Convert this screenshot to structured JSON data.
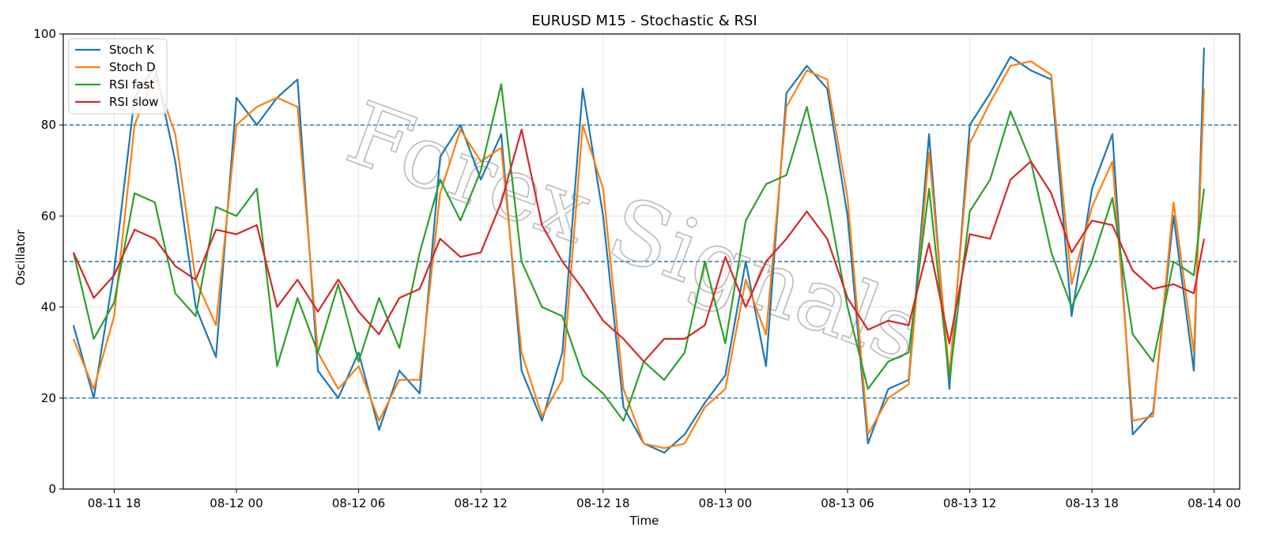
{
  "chart_data": {
    "type": "line",
    "title": "EURUSD M15 - Stochastic & RSI",
    "xlabel": "Time",
    "ylabel": "Oscillator",
    "ylim": [
      0,
      100
    ],
    "yticks": [
      0,
      20,
      40,
      60,
      80,
      100
    ],
    "xlim": [
      "2025-08-11 15:30",
      "2025-08-14 01:15"
    ],
    "xticks": [
      "2025-08-11 18:00",
      "2025-08-12 00:00",
      "2025-08-12 06:00",
      "2025-08-12 12:00",
      "2025-08-12 18:00",
      "2025-08-13 00:00",
      "2025-08-13 06:00",
      "2025-08-13 12:00",
      "2025-08-13 18:00",
      "2025-08-14 00:00"
    ],
    "xtick_labels": [
      "08-11 18",
      "08-12 00",
      "08-12 06",
      "08-12 12",
      "08-12 18",
      "08-13 00",
      "08-13 06",
      "08-13 12",
      "08-13 18",
      "08-14 00"
    ],
    "grid": true,
    "legend_position": "upper-left",
    "hlines": [
      {
        "y": 80,
        "style": "dashed",
        "color": "#1f77b4"
      },
      {
        "y": 50,
        "style": "dashed",
        "color": "#1f77b4"
      },
      {
        "y": 20,
        "style": "dashed",
        "color": "#1f77b4"
      }
    ],
    "watermark": "Forex Signals",
    "series": [
      {
        "name": "Stoch K",
        "color": "#1f77b4",
        "x": [
          "2025-08-11 16:00",
          "2025-08-11 17:00",
          "2025-08-11 18:00",
          "2025-08-11 19:00",
          "2025-08-11 20:00",
          "2025-08-11 21:00",
          "2025-08-11 22:00",
          "2025-08-11 23:00",
          "2025-08-12 00:00",
          "2025-08-12 01:00",
          "2025-08-12 02:00",
          "2025-08-12 03:00",
          "2025-08-12 04:00",
          "2025-08-12 05:00",
          "2025-08-12 06:00",
          "2025-08-12 07:00",
          "2025-08-12 08:00",
          "2025-08-12 09:00",
          "2025-08-12 10:00",
          "2025-08-12 11:00",
          "2025-08-12 12:00",
          "2025-08-12 13:00",
          "2025-08-12 14:00",
          "2025-08-12 15:00",
          "2025-08-12 16:00",
          "2025-08-12 17:00",
          "2025-08-12 18:00",
          "2025-08-12 19:00",
          "2025-08-12 20:00",
          "2025-08-12 21:00",
          "2025-08-12 22:00",
          "2025-08-12 23:00",
          "2025-08-13 00:00",
          "2025-08-13 01:00",
          "2025-08-13 02:00",
          "2025-08-13 03:00",
          "2025-08-13 04:00",
          "2025-08-13 05:00",
          "2025-08-13 06:00",
          "2025-08-13 07:00",
          "2025-08-13 08:00",
          "2025-08-13 09:00",
          "2025-08-13 10:00",
          "2025-08-13 11:00",
          "2025-08-13 12:00",
          "2025-08-13 13:00",
          "2025-08-13 14:00",
          "2025-08-13 15:00",
          "2025-08-13 16:00",
          "2025-08-13 17:00",
          "2025-08-13 18:00",
          "2025-08-13 19:00",
          "2025-08-13 20:00",
          "2025-08-13 21:00",
          "2025-08-13 22:00",
          "2025-08-13 23:00",
          "2025-08-13 23:30"
        ],
        "values": [
          36,
          20,
          48,
          86,
          93,
          72,
          40,
          29,
          86,
          80,
          86,
          90,
          26,
          20,
          30,
          13,
          26,
          21,
          73,
          80,
          68,
          78,
          26,
          15,
          30,
          88,
          60,
          18,
          10,
          8,
          12,
          19,
          25,
          50,
          27,
          87,
          93,
          88,
          60,
          10,
          22,
          24,
          78,
          22,
          80,
          87,
          95,
          92,
          90,
          38,
          66,
          78,
          12,
          17,
          60,
          26,
          97
        ]
      },
      {
        "name": "Stoch D",
        "color": "#ff7f0e",
        "x": [
          "2025-08-11 16:00",
          "2025-08-11 17:00",
          "2025-08-11 18:00",
          "2025-08-11 19:00",
          "2025-08-11 20:00",
          "2025-08-11 21:00",
          "2025-08-11 22:00",
          "2025-08-11 23:00",
          "2025-08-12 00:00",
          "2025-08-12 01:00",
          "2025-08-12 02:00",
          "2025-08-12 03:00",
          "2025-08-12 04:00",
          "2025-08-12 05:00",
          "2025-08-12 06:00",
          "2025-08-12 07:00",
          "2025-08-12 08:00",
          "2025-08-12 09:00",
          "2025-08-12 10:00",
          "2025-08-12 11:00",
          "2025-08-12 12:00",
          "2025-08-12 13:00",
          "2025-08-12 14:00",
          "2025-08-12 15:00",
          "2025-08-12 16:00",
          "2025-08-12 17:00",
          "2025-08-12 18:00",
          "2025-08-12 19:00",
          "2025-08-12 20:00",
          "2025-08-12 21:00",
          "2025-08-12 22:00",
          "2025-08-12 23:00",
          "2025-08-13 00:00",
          "2025-08-13 01:00",
          "2025-08-13 02:00",
          "2025-08-13 03:00",
          "2025-08-13 04:00",
          "2025-08-13 05:00",
          "2025-08-13 06:00",
          "2025-08-13 07:00",
          "2025-08-13 08:00",
          "2025-08-13 09:00",
          "2025-08-13 10:00",
          "2025-08-13 11:00",
          "2025-08-13 12:00",
          "2025-08-13 13:00",
          "2025-08-13 14:00",
          "2025-08-13 15:00",
          "2025-08-13 16:00",
          "2025-08-13 17:00",
          "2025-08-13 18:00",
          "2025-08-13 19:00",
          "2025-08-13 20:00",
          "2025-08-13 21:00",
          "2025-08-13 22:00",
          "2025-08-13 23:00",
          "2025-08-13 23:30"
        ],
        "values": [
          33,
          22,
          38,
          80,
          91,
          78,
          46,
          36,
          80,
          84,
          86,
          84,
          30,
          22,
          27,
          15,
          24,
          24,
          65,
          79,
          72,
          75,
          30,
          16,
          24,
          80,
          66,
          22,
          10,
          9,
          10,
          18,
          22,
          46,
          34,
          84,
          92,
          90,
          64,
          12,
          20,
          23,
          74,
          25,
          76,
          85,
          93,
          94,
          91,
          45,
          62,
          72,
          15,
          16,
          63,
          30,
          88
        ]
      },
      {
        "name": "RSI fast",
        "color": "#2ca02c",
        "x": [
          "2025-08-11 16:00",
          "2025-08-11 17:00",
          "2025-08-11 18:00",
          "2025-08-11 19:00",
          "2025-08-11 20:00",
          "2025-08-11 21:00",
          "2025-08-11 22:00",
          "2025-08-11 23:00",
          "2025-08-12 00:00",
          "2025-08-12 01:00",
          "2025-08-12 02:00",
          "2025-08-12 03:00",
          "2025-08-12 04:00",
          "2025-08-12 05:00",
          "2025-08-12 06:00",
          "2025-08-12 07:00",
          "2025-08-12 08:00",
          "2025-08-12 09:00",
          "2025-08-12 10:00",
          "2025-08-12 11:00",
          "2025-08-12 12:00",
          "2025-08-12 13:00",
          "2025-08-12 14:00",
          "2025-08-12 15:00",
          "2025-08-12 16:00",
          "2025-08-12 17:00",
          "2025-08-12 18:00",
          "2025-08-12 19:00",
          "2025-08-12 20:00",
          "2025-08-12 21:00",
          "2025-08-12 22:00",
          "2025-08-12 23:00",
          "2025-08-13 00:00",
          "2025-08-13 01:00",
          "2025-08-13 02:00",
          "2025-08-13 03:00",
          "2025-08-13 04:00",
          "2025-08-13 05:00",
          "2025-08-13 06:00",
          "2025-08-13 07:00",
          "2025-08-13 08:00",
          "2025-08-13 09:00",
          "2025-08-13 10:00",
          "2025-08-13 11:00",
          "2025-08-13 12:00",
          "2025-08-13 13:00",
          "2025-08-13 14:00",
          "2025-08-13 15:00",
          "2025-08-13 16:00",
          "2025-08-13 17:00",
          "2025-08-13 18:00",
          "2025-08-13 19:00",
          "2025-08-13 20:00",
          "2025-08-13 21:00",
          "2025-08-13 22:00",
          "2025-08-13 23:00",
          "2025-08-13 23:30"
        ],
        "values": [
          52,
          33,
          41,
          65,
          63,
          43,
          38,
          62,
          60,
          66,
          27,
          42,
          30,
          45,
          28,
          42,
          31,
          52,
          68,
          59,
          70,
          89,
          50,
          40,
          38,
          25,
          21,
          15,
          28,
          24,
          30,
          50,
          32,
          59,
          67,
          69,
          84,
          64,
          40,
          22,
          28,
          30,
          66,
          24,
          61,
          68,
          83,
          72,
          52,
          40,
          50,
          64,
          34,
          28,
          50,
          47,
          66
        ]
      },
      {
        "name": "RSI slow",
        "color": "#d62728",
        "x": [
          "2025-08-11 16:00",
          "2025-08-11 17:00",
          "2025-08-11 18:00",
          "2025-08-11 19:00",
          "2025-08-11 20:00",
          "2025-08-11 21:00",
          "2025-08-11 22:00",
          "2025-08-11 23:00",
          "2025-08-12 00:00",
          "2025-08-12 01:00",
          "2025-08-12 02:00",
          "2025-08-12 03:00",
          "2025-08-12 04:00",
          "2025-08-12 05:00",
          "2025-08-12 06:00",
          "2025-08-12 07:00",
          "2025-08-12 08:00",
          "2025-08-12 09:00",
          "2025-08-12 10:00",
          "2025-08-12 11:00",
          "2025-08-12 12:00",
          "2025-08-12 13:00",
          "2025-08-12 14:00",
          "2025-08-12 15:00",
          "2025-08-12 16:00",
          "2025-08-12 17:00",
          "2025-08-12 18:00",
          "2025-08-12 19:00",
          "2025-08-12 20:00",
          "2025-08-12 21:00",
          "2025-08-12 22:00",
          "2025-08-12 23:00",
          "2025-08-13 00:00",
          "2025-08-13 01:00",
          "2025-08-13 02:00",
          "2025-08-13 03:00",
          "2025-08-13 04:00",
          "2025-08-13 05:00",
          "2025-08-13 06:00",
          "2025-08-13 07:00",
          "2025-08-13 08:00",
          "2025-08-13 09:00",
          "2025-08-13 10:00",
          "2025-08-13 11:00",
          "2025-08-13 12:00",
          "2025-08-13 13:00",
          "2025-08-13 14:00",
          "2025-08-13 15:00",
          "2025-08-13 16:00",
          "2025-08-13 17:00",
          "2025-08-13 18:00",
          "2025-08-13 19:00",
          "2025-08-13 20:00",
          "2025-08-13 21:00",
          "2025-08-13 22:00",
          "2025-08-13 23:00",
          "2025-08-13 23:30"
        ],
        "values": [
          52,
          42,
          47,
          57,
          55,
          49,
          46,
          57,
          56,
          58,
          40,
          46,
          39,
          46,
          39,
          34,
          42,
          44,
          55,
          51,
          52,
          63,
          79,
          58,
          50,
          44,
          37,
          33,
          28,
          33,
          33,
          36,
          51,
          40,
          50,
          55,
          61,
          55,
          42,
          35,
          37,
          36,
          54,
          32,
          56,
          55,
          68,
          72,
          65,
          52,
          59,
          58,
          48,
          44,
          45,
          43,
          55
        ]
      }
    ]
  }
}
